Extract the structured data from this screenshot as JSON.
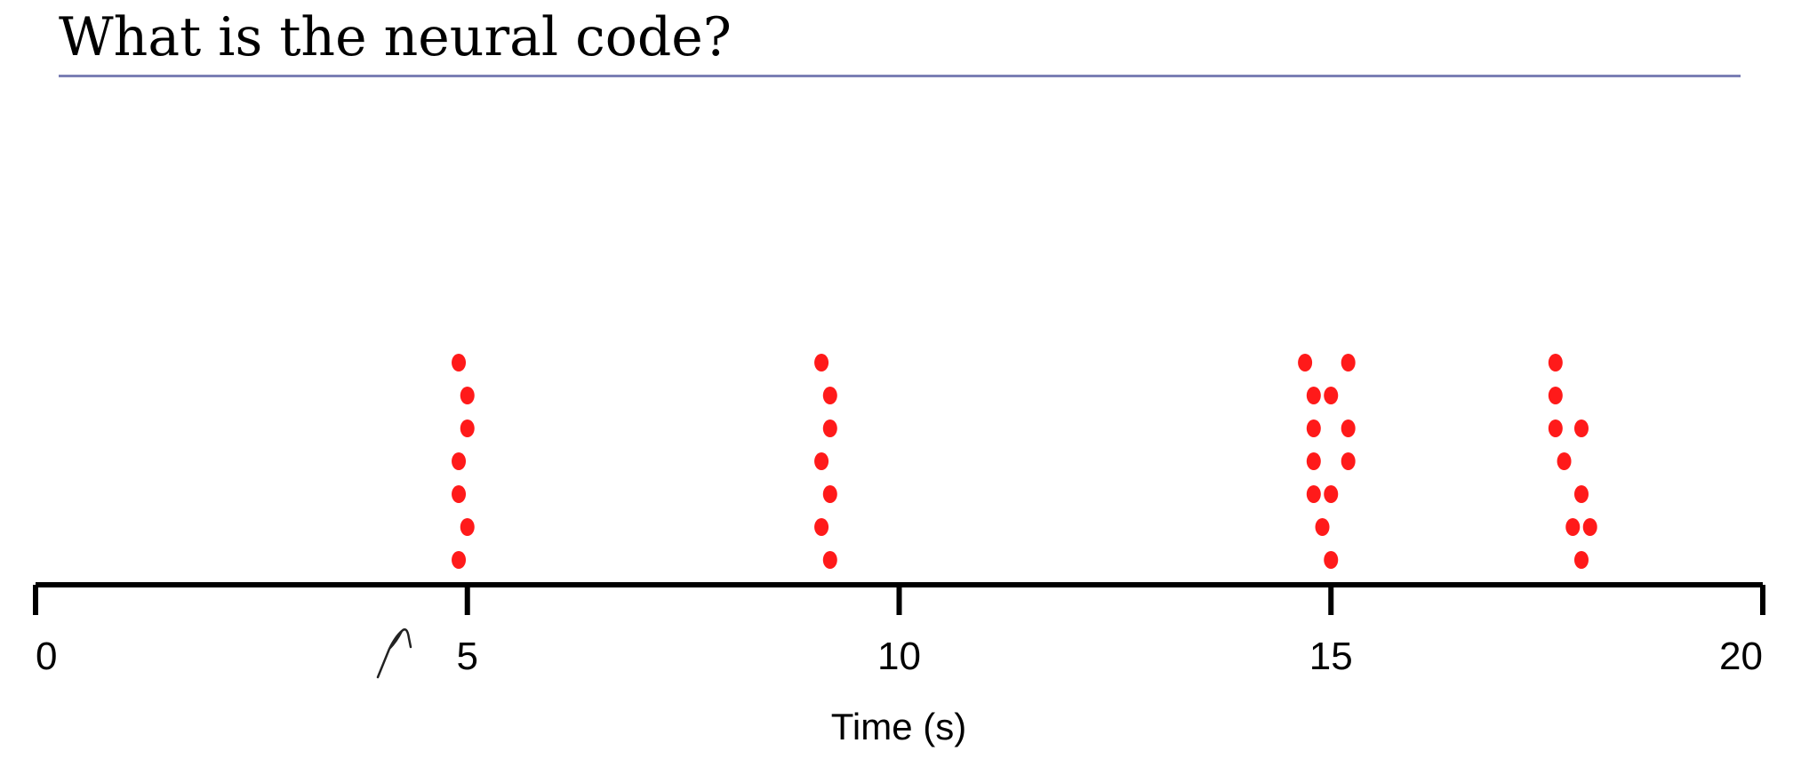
{
  "slide": {
    "title": "What is the neural code?"
  },
  "chart_data": {
    "type": "scatter",
    "title": "",
    "xlabel": "Time (s)",
    "ylabel": "",
    "xlim": [
      0,
      20
    ],
    "xticks": [
      0,
      5,
      10,
      15,
      20
    ],
    "grid": false,
    "legend": "none",
    "marker_color": "#ff1a1a",
    "axis_color": "#000000",
    "trials": [
      1,
      2,
      3,
      4,
      5,
      6,
      7
    ],
    "series": [
      {
        "values": [
          {
            "x": 4.9,
            "y": 7
          },
          {
            "x": 5.0,
            "y": 6
          },
          {
            "x": 5.0,
            "y": 5
          },
          {
            "x": 4.9,
            "y": 4
          },
          {
            "x": 4.9,
            "y": 3
          },
          {
            "x": 5.0,
            "y": 2
          },
          {
            "x": 4.9,
            "y": 1
          },
          {
            "x": 9.1,
            "y": 7
          },
          {
            "x": 9.2,
            "y": 6
          },
          {
            "x": 9.2,
            "y": 5
          },
          {
            "x": 9.1,
            "y": 4
          },
          {
            "x": 9.2,
            "y": 3
          },
          {
            "x": 9.1,
            "y": 2
          },
          {
            "x": 9.2,
            "y": 1
          },
          {
            "x": 14.7,
            "y": 7
          },
          {
            "x": 15.2,
            "y": 7
          },
          {
            "x": 14.8,
            "y": 6
          },
          {
            "x": 15.0,
            "y": 6
          },
          {
            "x": 14.8,
            "y": 5
          },
          {
            "x": 15.2,
            "y": 5
          },
          {
            "x": 14.8,
            "y": 4
          },
          {
            "x": 15.2,
            "y": 4
          },
          {
            "x": 14.8,
            "y": 3
          },
          {
            "x": 15.0,
            "y": 3
          },
          {
            "x": 14.9,
            "y": 2
          },
          {
            "x": 15.0,
            "y": 1
          },
          {
            "x": 17.6,
            "y": 7
          },
          {
            "x": 17.6,
            "y": 6
          },
          {
            "x": 17.6,
            "y": 5
          },
          {
            "x": 17.9,
            "y": 5
          },
          {
            "x": 17.7,
            "y": 4
          },
          {
            "x": 17.9,
            "y": 3
          },
          {
            "x": 17.8,
            "y": 2
          },
          {
            "x": 18.0,
            "y": 2
          },
          {
            "x": 17.9,
            "y": 1
          }
        ]
      }
    ]
  }
}
